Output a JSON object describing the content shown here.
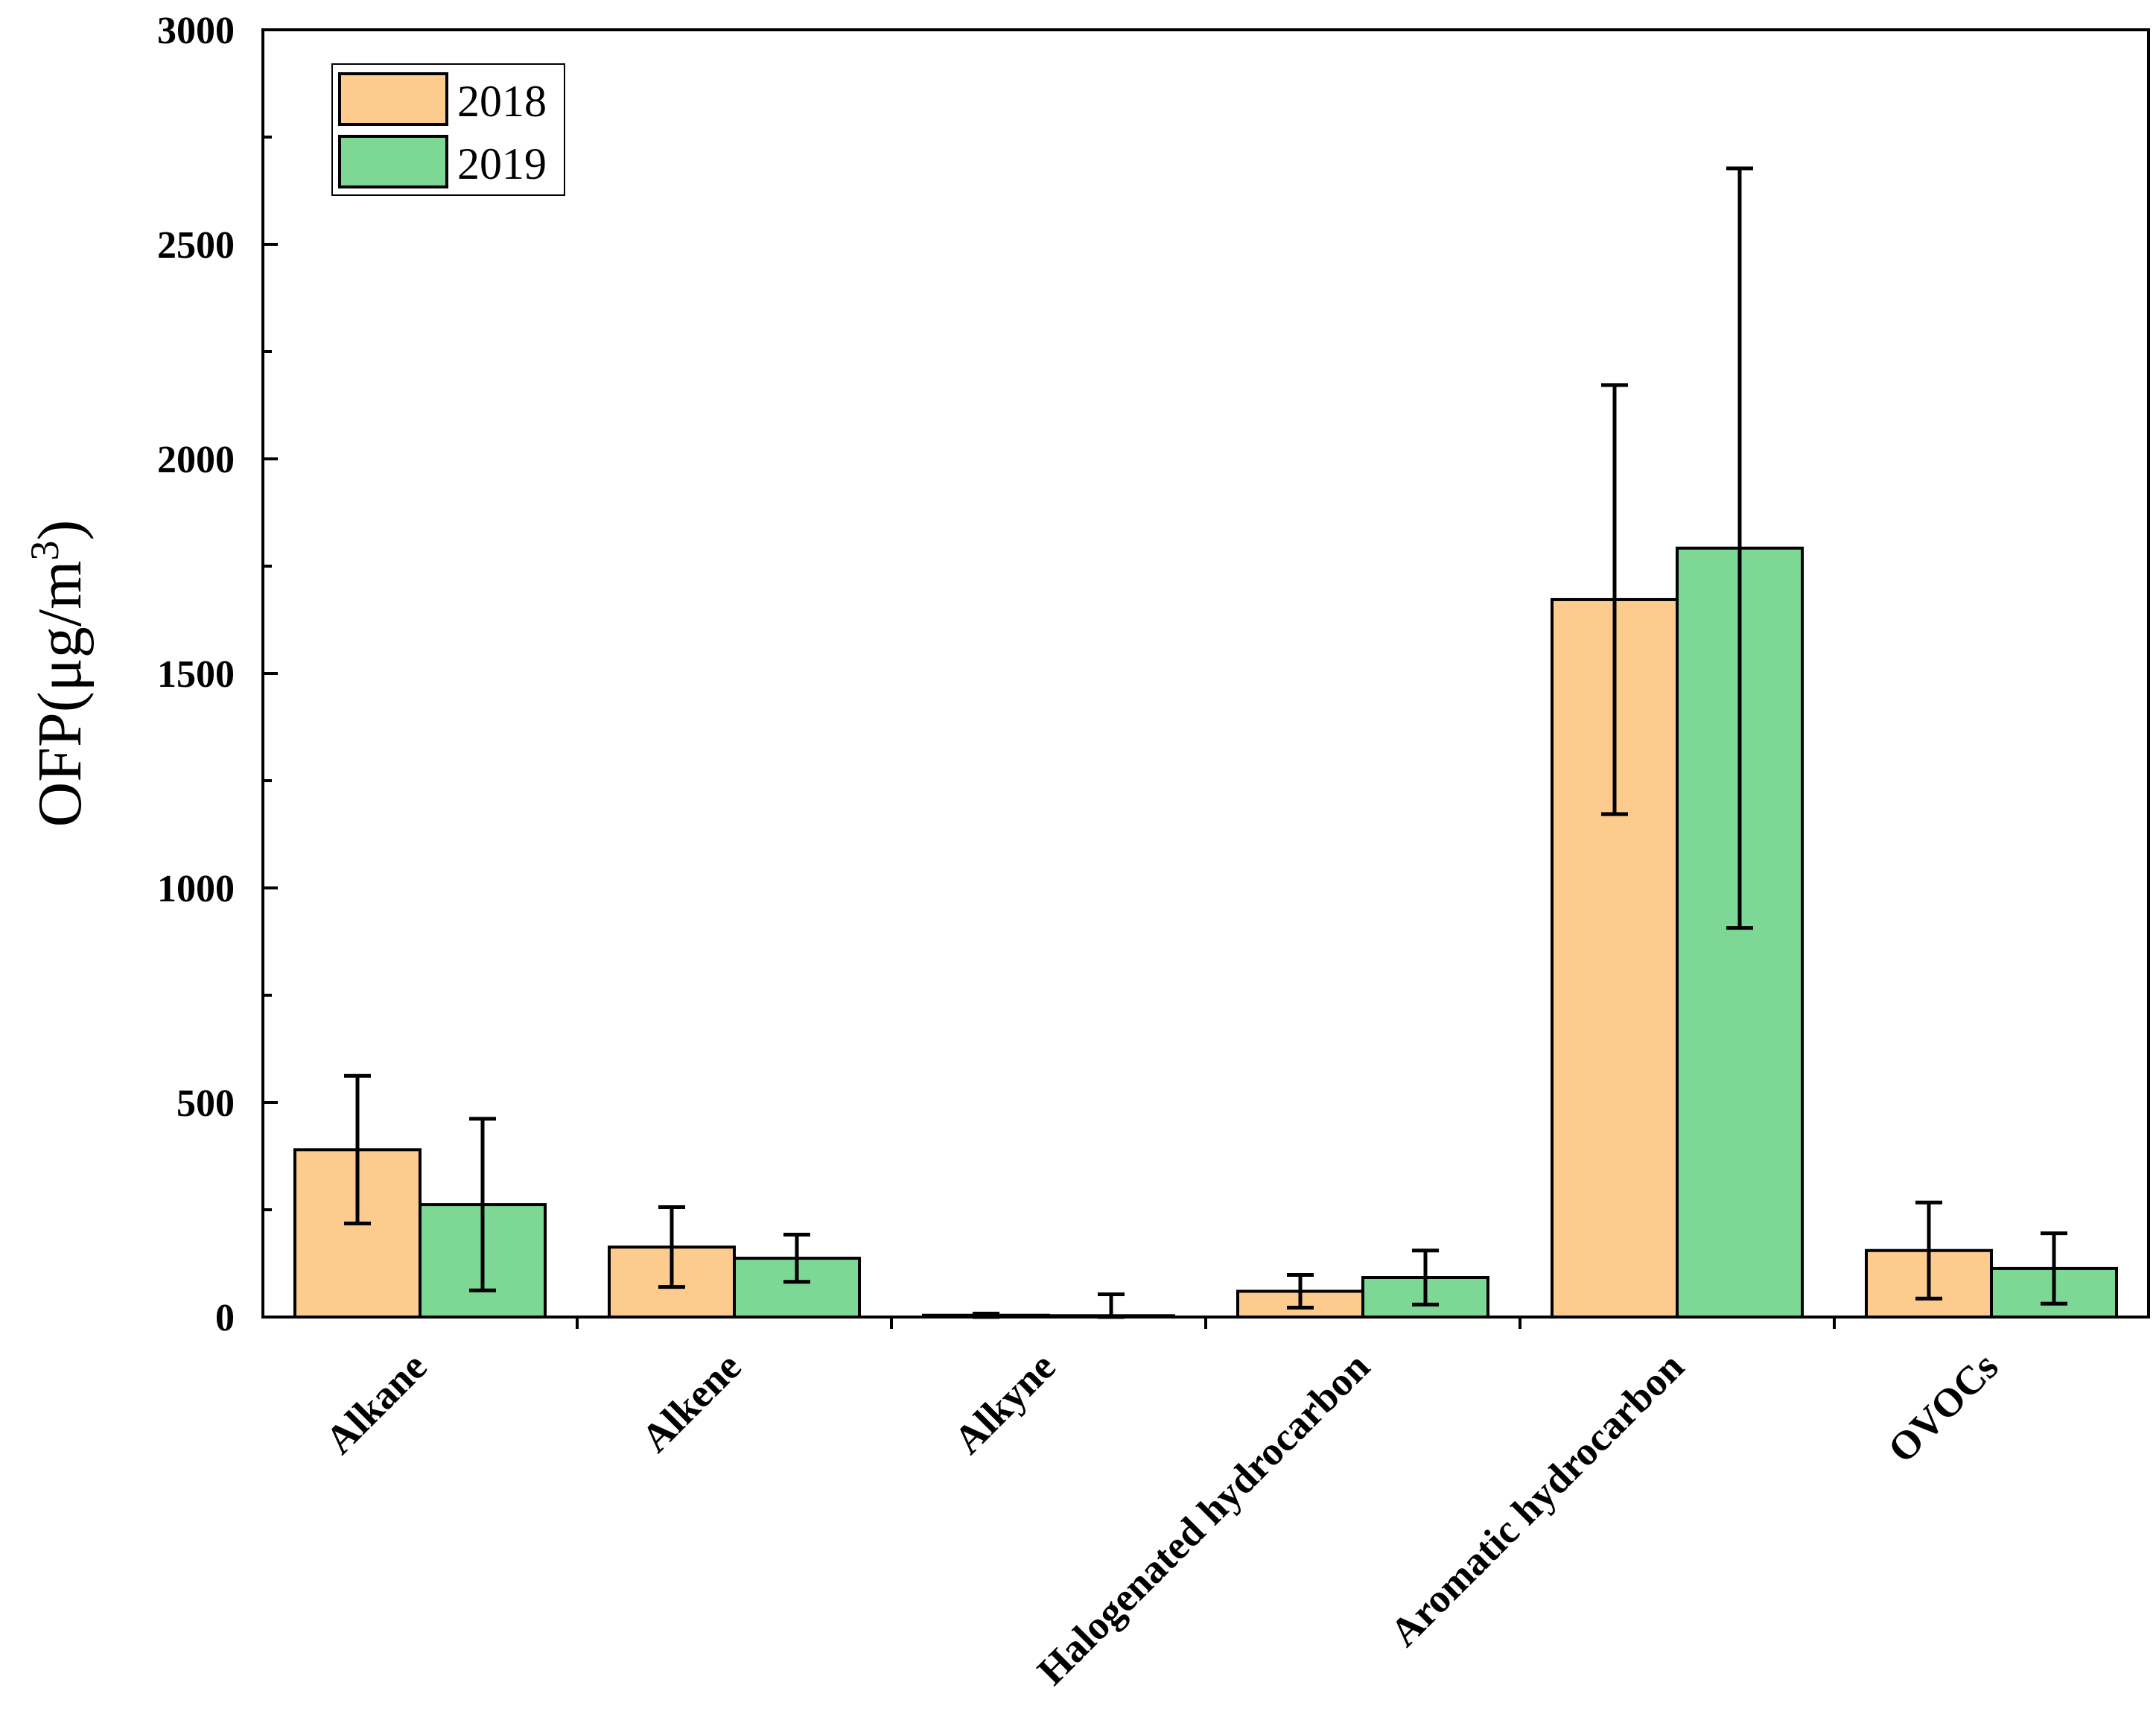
{
  "chart_data": {
    "type": "bar",
    "title": "",
    "xlabel": "",
    "ylabel": "OFP(μg/m",
    "ylabel_sup": "3",
    "ylabel_close": ")",
    "ylim": [
      0,
      3000
    ],
    "yticks": [
      0,
      500,
      1000,
      1500,
      2000,
      2500,
      3000
    ],
    "yminor_step": 250,
    "categories": [
      "Alkane",
      "Alkene",
      "Alkyne",
      "Halogenated hydrocarbon",
      "Aromatic hydrocarbon",
      "OVOCs"
    ],
    "series": [
      {
        "name": "2018",
        "color": "#FECB8F",
        "values": [
          390,
          163,
          4,
          60,
          1672,
          155
        ],
        "errors": [
          172,
          93,
          4,
          38,
          500,
          112
        ]
      },
      {
        "name": "2019",
        "color": "#7DD896",
        "values": [
          262,
          137,
          3,
          92,
          1792,
          113
        ],
        "errors": [
          200,
          55,
          50,
          63,
          885,
          82
        ]
      }
    ],
    "legend": {
      "position": "top-left",
      "entries": [
        "2018",
        "2019"
      ]
    },
    "grid": false
  }
}
